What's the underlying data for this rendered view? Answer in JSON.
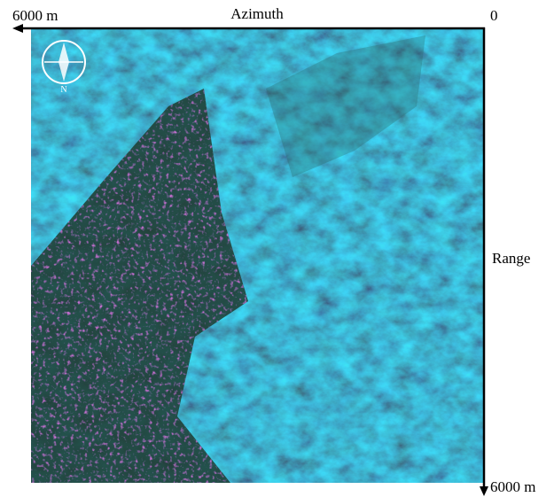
{
  "labels": {
    "azimuth_start": "6000 m",
    "azimuth_title": "Azimuth",
    "origin": "0",
    "range_title": "Range",
    "range_end": "6000 m"
  },
  "compass": {
    "north": "N"
  }
}
